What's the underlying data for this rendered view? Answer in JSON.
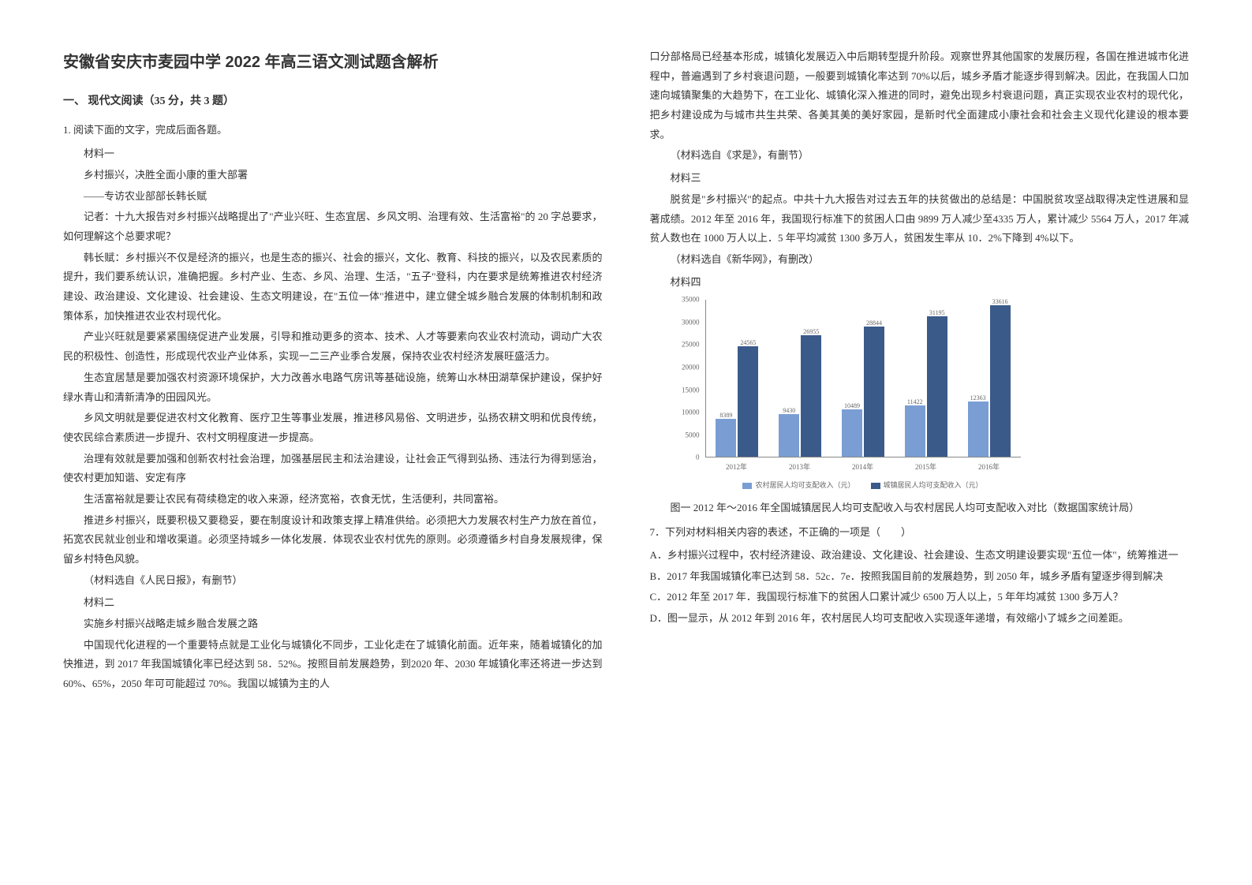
{
  "title": "安徽省安庆市麦园中学 2022 年高三语文测试题含解析",
  "section_header": "一、 现代文阅读（35 分，共 3 题）",
  "question_label": "1. 阅读下面的文字，完成后面各题。",
  "col1": {
    "material1_label": "材料一",
    "p1": "乡村振兴，决胜全面小康的重大部署",
    "p2": "——专访农业部部长韩长赋",
    "p3": "记者：十九大报告对乡村振兴战略提出了\"产业兴旺、生态宜居、乡风文明、治理有效、生活富裕\"的 20 字总要求，如何理解这个总要求呢？",
    "p4": "韩长赋：乡村振兴不仅是经济的振兴，也是生态的振兴、社会的振兴，文化、教育、科技的振兴，以及农民素质的提升，我们要系统认识，准确把握。乡村产业、生态、乡风、治理、生活，\"五子\"登科，内在要求是统筹推进农村经济建设、政治建设、文化建设、社会建设、生态文明建设，在\"五位一体\"推进中，建立健全城乡融合发展的体制机制和政策体系，加快推进农业农村现代化。",
    "p5": "产业兴旺就是要紧紧围绕促进产业发展，引导和推动更多的资本、技术、人才等要素向农业农村流动，调动广大农民的积极性、创造性，形成现代农业产业体系，实现一二三产业季合发展，保持农业农村经济发展旺盛活力。",
    "p6": "生态宜居慧是要加强农村资源环境保护，大力改善水电路气房讯等基础设施，统筹山水林田湖草保护建设，保护好绿水青山和清新清净的田园风光。",
    "p7": "乡风文明就是要促进农村文化教育、医疗卫生等事业发展，推进移风易俗、文明进步，弘扬农耕文明和优良传统，使农民综合素质进一步提升、农村文明程度进一步提高。",
    "p8": "治理有效就是要加强和创新农村社会治理，加强基层民主和法治建设，让社会正气得到弘扬、违法行为得到惩治，使农村更加知谐、安定有序",
    "p9": "生活富裕就是要让农民有荷续稳定的收入来源，经济宽裕，衣食无忧，生活便利，共同富裕。",
    "p10": "推进乡村振兴，既要积极又要稳妥，要在制度设计和政策支撑上精准供给。必须把大力发展农村生产力放在首位，拓宽农民就业创业和增收渠道。必须坚持城乡一体化发展．体现农业农村优先的原则。必须遵循乡村自身发展规律，保留乡村特色风貌。",
    "p11": "（材料选自《人民日报》，有删节）",
    "material2_label": "材料二",
    "p12": "实施乡村振兴战略走城乡融合发展之路",
    "p13": "中国现代化进程的一个重要特点就是工业化与城镇化不同步，工业化走在了城镇化前面。近年来，随着城镇化的加快推进，到 2017 年我国城镇化率已经达到 58．52%。按照目前发展趋势，到2020 年、2030 年城镇化率还将进一步达到 60%、65%，2050 年可可能超过 70%。我国以城镇为主的人"
  },
  "col2": {
    "p1": "口分部格局已经基本形成，城镇化发展迈入中后期转型提升阶段。观察世界其他国家的发展历程，各国在推进城市化进程中，普遍遇到了乡村衰退问题，一般要到城镇化率达到 70%以后，城乡矛盾才能逐步得到解决。因此，在我国人口加速向城镇聚集的大趋势下，在工业化、城镇化深入推进的同时，避免出现乡村衰退问题，真正实现农业农村的现代化，把乡村建设成为与城市共生共荣、各美其美的美好家园，是新时代全面建成小康社会和社会主义现代化建设的根本要求。",
    "p2": "（材料选自《求是》，有删节）",
    "material3_label": "材料三",
    "p3": "脱贫是\"乡村振兴\"的起点。中共十九大报告对过去五年的扶贫做出的总结是：中国脱贫攻坚战取得决定性进展和显著成绩。2012 年至 2016 年，我国现行标准下的贫困人口由 9899 万人减少至4335 万人，累计减少 5564 万人，2017 年减贫人数也在 1000 万人以上．5 年平均减贫 1300 多万人，贫困发生率从 10．2%下降到 4%以下。",
    "p4": "（材料选自《新华网》，有删改）",
    "material4_label": "材料四",
    "chart_caption": "图一    2012 年～2016 年全国城镇居民人均可支配收入与农村居民人均可支配收入对比（数据国家统计局）",
    "question7": "7．下列对材料相关内容的表述，不正确的一项是（　　）",
    "optA": "A．乡村振兴过程中，农村经济建设、政治建设、文化建设、社会建设、生态文明建设要实现\"五位一体\"，统筹推进一",
    "optB": "B．2017 年我国城镇化率已达到 58．52c．7e．按照我国目前的发展趋势，到 2050 年，城乡矛盾有望逐步得到解决",
    "optC": "C．2012 年至 2017 年．我国现行标准下的贫困人口累计减少 6500 万人以上，5 年年均减贫 1300 多万人？",
    "optD": "D．图一显示，从 2012 年到 2016 年，农村居民人均可支配收入实现逐年递增，有效缩小了城乡之间差距。"
  },
  "chart": {
    "type": "bar",
    "y_max": 35000,
    "y_ticks": [
      0,
      5000,
      10000,
      15000,
      20000,
      25000,
      30000,
      35000
    ],
    "categories": [
      "2012年",
      "2013年",
      "2014年",
      "2015年",
      "2016年"
    ],
    "series": [
      {
        "name": "农村居民人均可支配收入（元）",
        "color": "#7a9ed4",
        "values": [
          8389,
          9430,
          10489,
          11422,
          12363
        ]
      },
      {
        "name": "城镇居民人均可支配收入（元）",
        "color": "#3a5a8a",
        "values": [
          24565,
          26955,
          28844,
          31195,
          33616
        ]
      }
    ],
    "grid_color": "#dddddd",
    "background": "#ffffff",
    "label_fontsize": 9
  }
}
